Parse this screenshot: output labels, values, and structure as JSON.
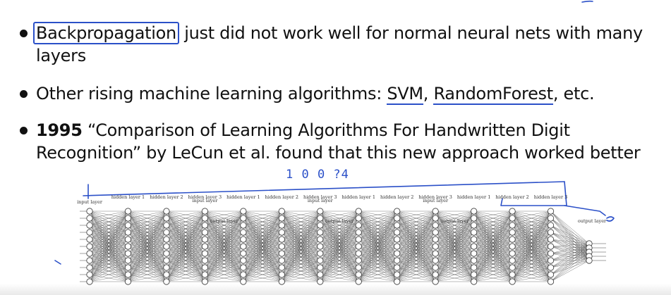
{
  "bullets": [
    {
      "highlight": "Backpropagation",
      "rest": " just did not work well for normal neural nets with many layers"
    },
    {
      "lead": "Other rising machine learning algorithms: ",
      "svm": "SVM",
      "sep": ", ",
      "rf": "RandomForest",
      "tail": ", etc."
    },
    {
      "year": "1995",
      "rest": " “Comparison of Learning Algorithms For Handwritten Digit Recognition” by LeCun et al. found that this new approach worked better"
    }
  ],
  "handwriting": "1 0 0 ?4",
  "network": {
    "layer_labels_top": [
      "hidden layer 1",
      "hidden layer 2",
      "hidden layer 3",
      "hidden layer 1",
      "hidden layer 2",
      "hidden layer 3",
      "hidden layer 1",
      "hidden layer 2",
      "hidden layer 3",
      "hidden layer 1",
      "hidden layer 2",
      "hidden layer 3"
    ],
    "input_label": "input layer",
    "output_label": "output layer"
  }
}
